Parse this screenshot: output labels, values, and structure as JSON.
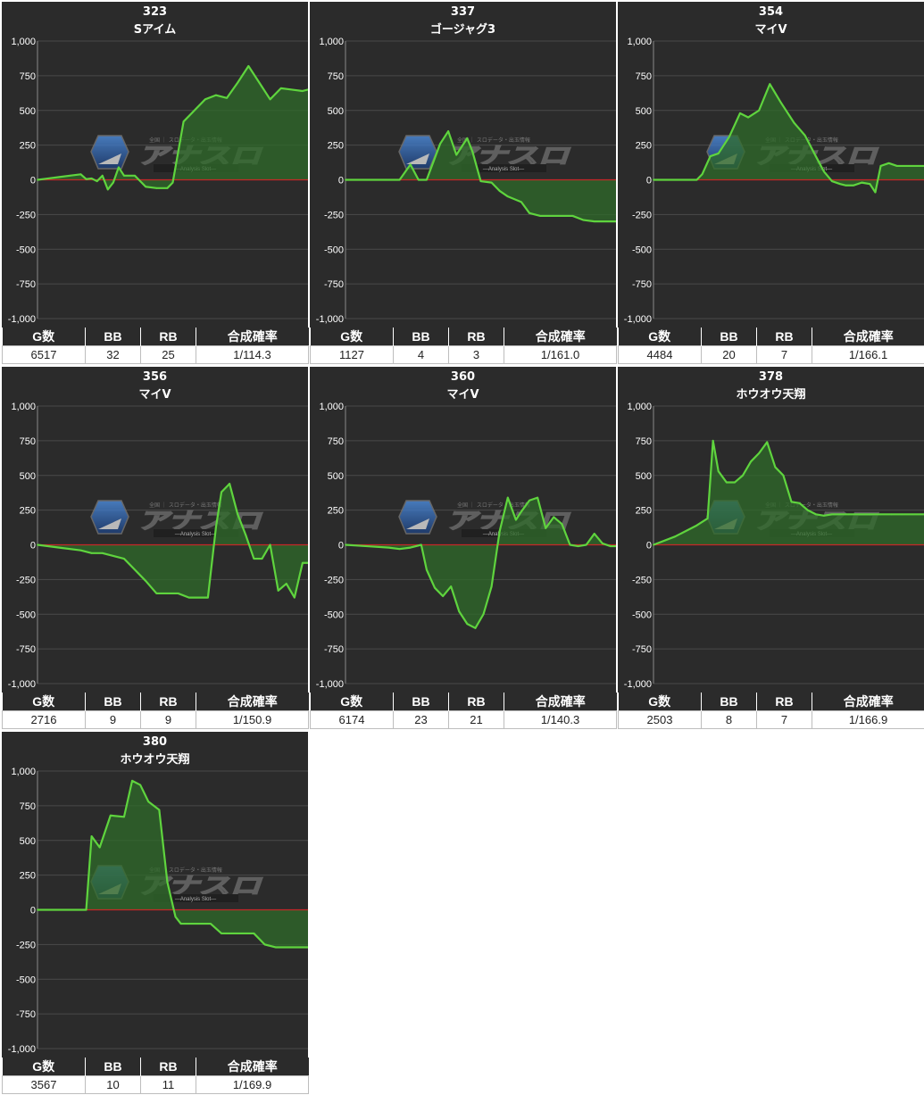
{
  "columns": [
    "G数",
    "BB",
    "RB",
    "合成確率"
  ],
  "y_ticks": [
    "1,000",
    "750",
    "500",
    "250",
    "0",
    "-250",
    "-500",
    "-750",
    "-1,000"
  ],
  "watermark": {
    "logo_text": "アナスロ",
    "tagline": "全国 ｜ スロデータ・出玉情報",
    "sub": "―Analysis Slot―"
  },
  "colors": {
    "plot_bg": "#2b2b2b",
    "grid": "#4a4a4a",
    "zero_line": "#c62828",
    "series_line": "#5fd43e",
    "fill": "#2f6b2a",
    "header_bg": "#2b2b2b"
  },
  "machines": [
    {
      "number": "323",
      "name": "Sアイム",
      "stats": {
        "games": "6517",
        "bb": "32",
        "rb": "25",
        "prob": "1/114.3"
      },
      "chart_data": {
        "type": "area",
        "ylim": [
          -1000,
          1000
        ],
        "grid": true,
        "x": [
          0,
          4,
          8,
          12,
          16,
          18,
          20,
          22,
          24,
          26,
          28,
          30,
          32,
          36,
          40,
          44,
          48,
          50,
          54,
          58,
          62,
          66,
          70,
          74,
          78,
          82,
          86,
          90,
          94,
          98,
          100
        ],
        "values": [
          0,
          10,
          20,
          30,
          40,
          5,
          10,
          -10,
          30,
          -70,
          -20,
          90,
          30,
          30,
          -50,
          -60,
          -60,
          -20,
          420,
          500,
          580,
          610,
          590,
          700,
          820,
          700,
          580,
          660,
          650,
          640,
          650
        ]
      }
    },
    {
      "number": "337",
      "name": "ゴージャグ3",
      "stats": {
        "games": "1127",
        "bb": "4",
        "rb": "3",
        "prob": "1/161.0"
      },
      "chart_data": {
        "type": "area",
        "ylim": [
          -1000,
          1000
        ],
        "grid": true,
        "x": [
          0,
          16,
          20,
          24,
          27,
          30,
          35,
          38,
          41,
          45,
          47,
          50,
          54,
          57,
          60,
          65,
          68,
          72,
          76,
          80,
          84,
          88,
          92,
          96,
          100
        ],
        "values": [
          0,
          0,
          0,
          110,
          0,
          0,
          260,
          350,
          180,
          300,
          200,
          -10,
          -20,
          -80,
          -120,
          -160,
          -240,
          -260,
          -260,
          -260,
          -260,
          -290,
          -300,
          -300,
          -300
        ]
      }
    },
    {
      "number": "354",
      "name": "マイV",
      "stats": {
        "games": "4484",
        "bb": "20",
        "rb": "7",
        "prob": "1/166.1"
      },
      "chart_data": {
        "type": "area",
        "ylim": [
          -1000,
          1000
        ],
        "grid": true,
        "x": [
          0,
          16,
          18,
          21,
          24,
          28,
          32,
          35,
          39,
          43,
          47,
          52,
          56,
          60,
          63,
          66,
          69,
          71,
          74,
          77,
          80,
          82,
          84,
          87,
          90,
          94,
          98,
          100
        ],
        "values": [
          0,
          0,
          40,
          170,
          190,
          310,
          480,
          450,
          500,
          690,
          560,
          410,
          320,
          170,
          60,
          -10,
          -30,
          -40,
          -40,
          -20,
          -30,
          -90,
          100,
          120,
          100,
          100,
          100,
          100
        ]
      }
    },
    {
      "number": "356",
      "name": "マイV",
      "stats": {
        "games": "2716",
        "bb": "9",
        "rb": "9",
        "prob": "1/150.9"
      },
      "chart_data": {
        "type": "area",
        "ylim": [
          -1000,
          1000
        ],
        "grid": true,
        "x": [
          0,
          8,
          16,
          20,
          24,
          28,
          32,
          36,
          40,
          44,
          48,
          52,
          56,
          60,
          63,
          66,
          68,
          71,
          74,
          77,
          80,
          83,
          86,
          89,
          92,
          95,
          98,
          100
        ],
        "values": [
          0,
          -20,
          -40,
          -60,
          -60,
          -80,
          -100,
          -180,
          -260,
          -350,
          -350,
          -350,
          -380,
          -380,
          -380,
          130,
          380,
          440,
          220,
          70,
          -100,
          -100,
          0,
          -330,
          -280,
          -380,
          -130,
          -130
        ]
      }
    },
    {
      "number": "360",
      "name": "マイV",
      "stats": {
        "games": "6174",
        "bb": "23",
        "rb": "21",
        "prob": "1/140.3"
      },
      "chart_data": {
        "type": "area",
        "ylim": [
          -1000,
          1000
        ],
        "grid": true,
        "x": [
          0,
          8,
          16,
          20,
          24,
          28,
          30,
          33,
          36,
          39,
          42,
          45,
          48,
          51,
          54,
          57,
          60,
          63,
          65,
          68,
          71,
          74,
          77,
          80,
          83,
          86,
          89,
          92,
          95,
          98,
          100
        ],
        "values": [
          0,
          -10,
          -20,
          -30,
          -20,
          0,
          -180,
          -310,
          -370,
          -300,
          -480,
          -570,
          -600,
          -500,
          -300,
          100,
          340,
          180,
          240,
          320,
          340,
          120,
          200,
          150,
          0,
          -10,
          0,
          80,
          10,
          -10,
          -10
        ]
      }
    },
    {
      "number": "378",
      "name": "ホウオウ天翔",
      "stats": {
        "games": "2503",
        "bb": "8",
        "rb": "7",
        "prob": "1/166.9"
      },
      "chart_data": {
        "type": "area",
        "ylim": [
          -1000,
          1000
        ],
        "grid": true,
        "x": [
          0,
          8,
          16,
          20,
          22,
          24,
          27,
          30,
          33,
          36,
          39,
          42,
          45,
          48,
          51,
          54,
          57,
          60,
          63,
          66,
          69,
          72,
          76,
          80,
          84,
          88,
          92,
          96,
          100
        ],
        "values": [
          0,
          60,
          140,
          190,
          750,
          530,
          450,
          450,
          500,
          600,
          660,
          740,
          560,
          500,
          310,
          300,
          250,
          220,
          210,
          220,
          220,
          220,
          220,
          220,
          220,
          220,
          220,
          220,
          220
        ]
      }
    },
    {
      "number": "380",
      "name": "ホウオウ天翔",
      "stats": {
        "games": "3567",
        "bb": "10",
        "rb": "11",
        "prob": "1/169.9"
      },
      "chart_data": {
        "type": "area",
        "ylim": [
          -1000,
          1000
        ],
        "grid": true,
        "x": [
          0,
          18,
          20,
          23,
          27,
          32,
          35,
          38,
          41,
          45,
          48,
          51,
          53,
          56,
          60,
          64,
          68,
          72,
          76,
          80,
          84,
          88,
          92,
          96,
          100
        ],
        "values": [
          0,
          0,
          530,
          450,
          680,
          670,
          930,
          900,
          780,
          720,
          200,
          -50,
          -100,
          -100,
          -100,
          -100,
          -170,
          -170,
          -170,
          -170,
          -250,
          -270,
          -270,
          -270,
          -270
        ]
      }
    }
  ]
}
